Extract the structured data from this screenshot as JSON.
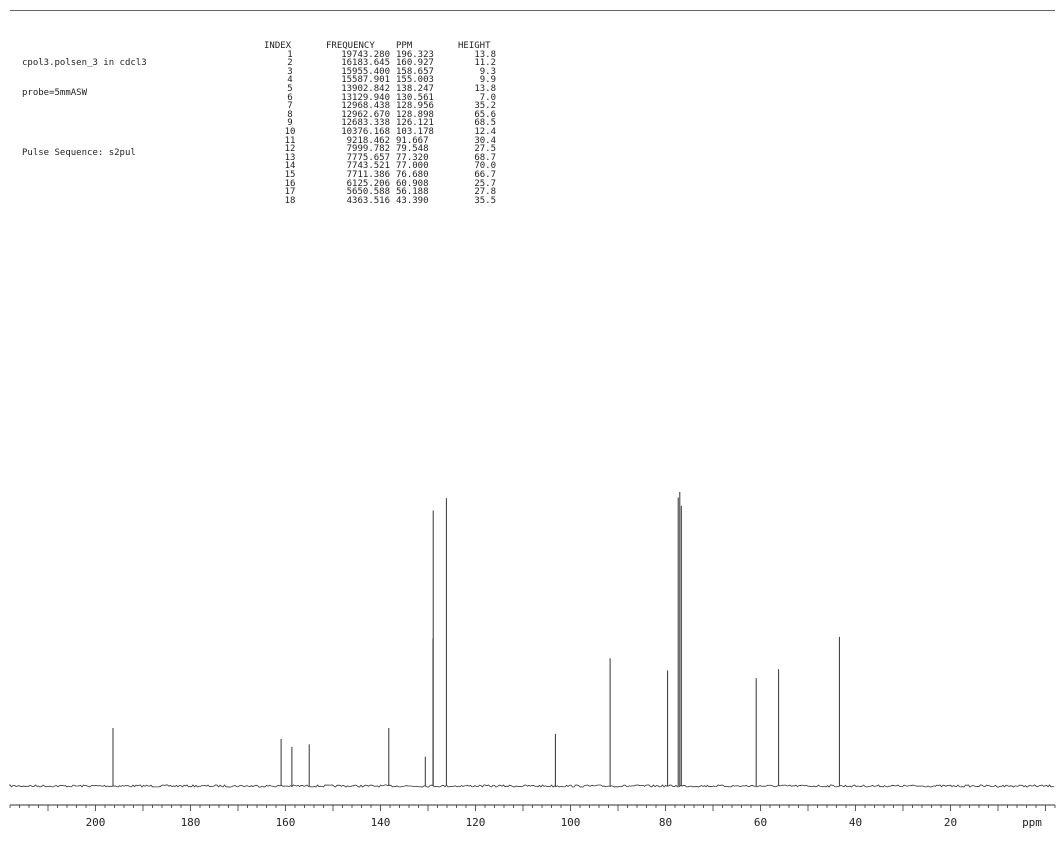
{
  "header": {
    "line1": "cpol3.polsen_3 in cdcl3",
    "line2": "probe=5mmASW",
    "line3": "Pulse Sequence: s2pul"
  },
  "table": {
    "headers": [
      "INDEX",
      "FREQUENCY",
      "PPM",
      "HEIGHT"
    ],
    "rows": [
      [
        "1",
        "19743.280",
        "196.323",
        "13.8"
      ],
      [
        "2",
        "16183.645",
        "160.927",
        "11.2"
      ],
      [
        "3",
        "15955.400",
        "158.657",
        "9.3"
      ],
      [
        "4",
        "15587.901",
        "155.003",
        "9.9"
      ],
      [
        "5",
        "13902.842",
        "138.247",
        "13.8"
      ],
      [
        "6",
        "13129.940",
        "130.561",
        "7.0"
      ],
      [
        "7",
        "12968.438",
        "128.956",
        "35.2"
      ],
      [
        "8",
        "12962.670",
        "128.898",
        "65.6"
      ],
      [
        "9",
        "12683.338",
        "126.121",
        "68.5"
      ],
      [
        "10",
        "10376.168",
        "103.178",
        "12.4"
      ],
      [
        "11",
        "9218.462",
        "91.667",
        "30.4"
      ],
      [
        "12",
        "7999.782",
        "79.548",
        "27.5"
      ],
      [
        "13",
        "7775.657",
        "77.320",
        "68.7"
      ],
      [
        "14",
        "7743.521",
        "77.000",
        "70.0"
      ],
      [
        "15",
        "7711.386",
        "76.680",
        "66.7"
      ],
      [
        "16",
        "6125.206",
        "60.908",
        "25.7"
      ],
      [
        "17",
        "5650.588",
        "56.188",
        "27.8"
      ],
      [
        "18",
        "4363.516",
        "43.390",
        "35.5"
      ]
    ]
  },
  "chart_data": {
    "type": "line",
    "xlabel": "ppm",
    "xlim": [
      218,
      -2
    ],
    "x_reversed": true,
    "ticks": [
      200,
      180,
      160,
      140,
      120,
      100,
      80,
      60,
      40,
      20
    ],
    "minor_tick_step": 2,
    "peaks": [
      {
        "ppm": 196.323,
        "height": 13.8
      },
      {
        "ppm": 160.927,
        "height": 11.2
      },
      {
        "ppm": 158.657,
        "height": 9.3
      },
      {
        "ppm": 155.003,
        "height": 9.9
      },
      {
        "ppm": 138.247,
        "height": 13.8
      },
      {
        "ppm": 130.561,
        "height": 7.0
      },
      {
        "ppm": 128.956,
        "height": 35.2
      },
      {
        "ppm": 128.898,
        "height": 65.6
      },
      {
        "ppm": 126.121,
        "height": 68.5
      },
      {
        "ppm": 103.178,
        "height": 12.4
      },
      {
        "ppm": 91.667,
        "height": 30.4
      },
      {
        "ppm": 79.548,
        "height": 27.5
      },
      {
        "ppm": 77.32,
        "height": 68.7
      },
      {
        "ppm": 77.0,
        "height": 70.0
      },
      {
        "ppm": 76.68,
        "height": 66.7
      },
      {
        "ppm": 60.908,
        "height": 25.7
      },
      {
        "ppm": 56.188,
        "height": 27.8
      },
      {
        "ppm": 43.39,
        "height": 35.5
      }
    ]
  }
}
